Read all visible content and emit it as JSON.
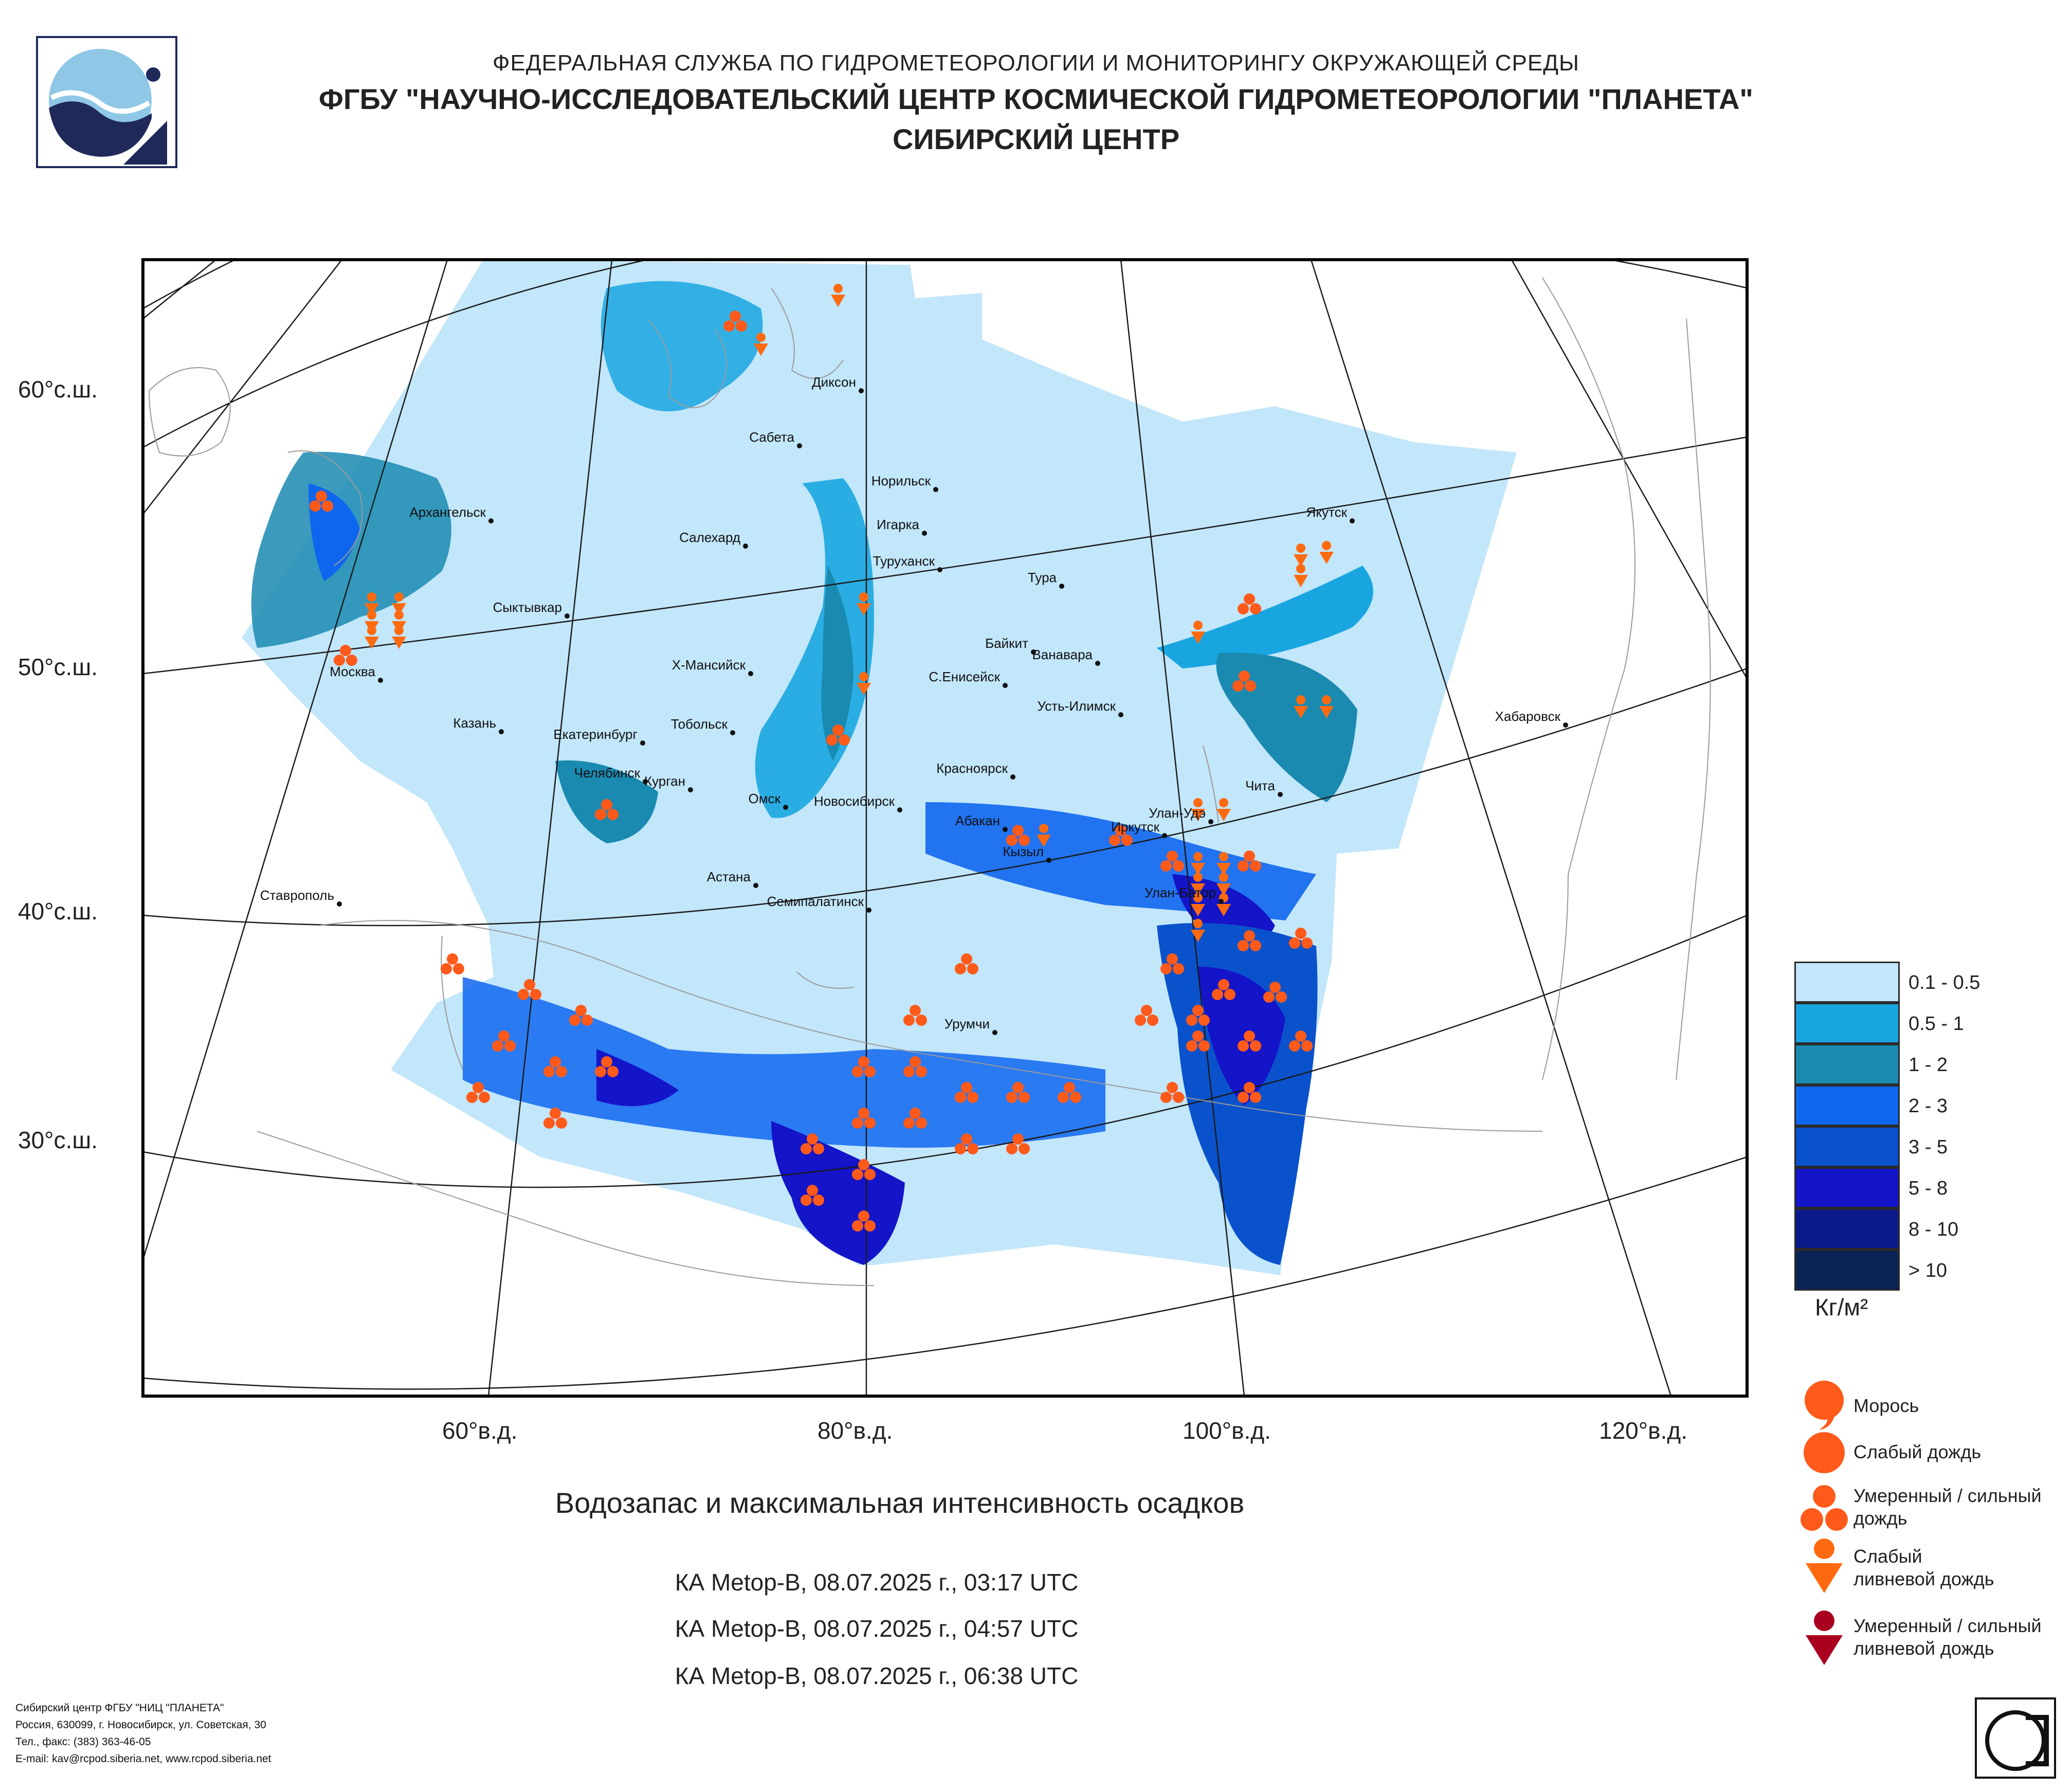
{
  "header": {
    "agency": "ФЕДЕРАЛЬНАЯ СЛУЖБА ПО ГИДРОМЕТЕОРОЛОГИИ И МОНИТОРИНГУ ОКРУЖАЮЩЕЙ СРЕДЫ",
    "institute": "ФГБУ \"НАУЧНО-ИССЛЕДОВАТЕЛЬСКИЙ ЦЕНТР КОСМИЧЕСКОЙ ГИДРОМЕТЕОРОЛОГИИ \"ПЛАНЕТА\"",
    "center": "СИБИРСКИЙ ЦЕНТР"
  },
  "map": {
    "lat_labels": [
      "60°с.ш.",
      "50°с.ш.",
      "40°с.ш.",
      "30°с.ш."
    ],
    "lon_labels": [
      "60°в.д.",
      "80°в.д.",
      "100°в.д.",
      "120°в.д."
    ],
    "cities": [
      "Диксон",
      "Сабета",
      "Норильск",
      "Архангельск",
      "Салехард",
      "Игарка",
      "Туруханск",
      "Якутск",
      "Тура",
      "Сыктывкар",
      "Байкит",
      "Ванавара",
      "Москва",
      "Х-Мансийск",
      "С.Енисейск",
      "Усть-Илимск",
      "Хабаровск",
      "Казань",
      "Екатеринбург",
      "Тобольск",
      "Красноярск",
      "Челябинск",
      "Курган",
      "Омск",
      "Новосибирск",
      "Абакан",
      "Улан-Удэ",
      "Чита",
      "Иркутск",
      "Кызыл",
      "Астана",
      "Ставрополь",
      "Семипалатинск",
      "Улан-Батор",
      "Урумчи"
    ]
  },
  "caption": "Водозапас и максимальная интенсивность осадков",
  "passes": [
    "КА Metop-B, 08.07.2025 г., 03:17 UTC",
    "КА Metop-B, 08.07.2025 г., 04:57 UTC",
    "КА Metop-B, 08.07.2025 г., 06:38 UTC"
  ],
  "legend": {
    "classes": [
      {
        "label": "0.1 - 0.5",
        "color": "#c2e6fa"
      },
      {
        "label": "0.5 - 1",
        "color": "#19a6e0"
      },
      {
        "label": "1 - 2",
        "color": "#1a8ab0"
      },
      {
        "label": "2 - 3",
        "color": "#0f66ee"
      },
      {
        "label": "3 - 5",
        "color": "#0a52cc"
      },
      {
        "label": "5 - 8",
        "color": "#1414c8"
      },
      {
        "label": "8 - 10",
        "color": "#0b1a8a"
      },
      {
        "label": "> 10",
        "color": "#0a2455"
      }
    ],
    "units": "Кг/м²"
  },
  "precip_legend": [
    {
      "icon": "drizzle-icon",
      "label": "Морось"
    },
    {
      "icon": "light-rain-icon",
      "label": "Слабый дождь"
    },
    {
      "icon": "moderate-rain-icon",
      "label": "Умеренный / сильный дождь"
    },
    {
      "icon": "light-shower-icon",
      "label": "Слабый ливневой дождь"
    },
    {
      "icon": "heavy-shower-icon",
      "label": "Умеренный / сильный ливневой дождь"
    }
  ],
  "symbol_colors": {
    "orange": "#ff5a1a",
    "shower_orange": "#ff6a10",
    "dark_red": "#a8001e"
  },
  "footer": [
    "Сибирский центр ФГБУ \"НИЦ \"ПЛАНЕТА\"",
    "Россия, 630099, г. Новосибирск, ул. Советская, 30",
    "Тел., факс: (383) 363-46-05",
    "E-mail: kav@rcpod.siberia.net, www.rcpod.siberia.net"
  ]
}
